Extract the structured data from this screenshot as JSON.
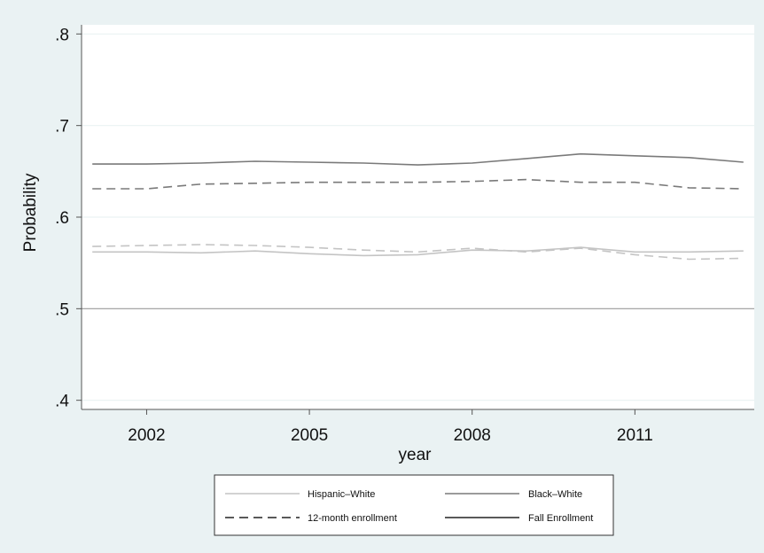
{
  "chart_data": {
    "type": "line",
    "xlabel": "year",
    "ylabel": "Probability",
    "xlim": [
      2000.8,
      2013.2
    ],
    "ylim": [
      0.39,
      0.81
    ],
    "x_ticks": [
      2002,
      2005,
      2008,
      2011
    ],
    "x_tick_labels": [
      "2002",
      "2005",
      "2008",
      "2011"
    ],
    "y_ticks": [
      0.4,
      0.5,
      0.6,
      0.7,
      0.8
    ],
    "y_tick_labels": [
      ".4",
      ".5",
      ".6",
      ".7",
      ".8"
    ],
    "reference_line_y": 0.5,
    "grid": true,
    "legend_position": "bottom",
    "legend": [
      {
        "label": "Hispanic–White",
        "style": "solid",
        "color": "#c4c4c4"
      },
      {
        "label": "Black–White",
        "style": "solid",
        "color": "#7a7a7a"
      },
      {
        "label": "12-month enrollment",
        "style": "dashed",
        "color": "#222222"
      },
      {
        "label": "Fall Enrollment",
        "style": "solid",
        "color": "#222222"
      }
    ],
    "x": [
      2001,
      2002,
      2003,
      2004,
      2005,
      2006,
      2007,
      2008,
      2009,
      2010,
      2011,
      2012,
      2013
    ],
    "series": [
      {
        "group": "Black–White",
        "measure": "Fall Enrollment",
        "style": "solid",
        "color": "#7a7a7a",
        "values": [
          0.658,
          0.658,
          0.659,
          0.661,
          0.66,
          0.659,
          0.657,
          0.659,
          0.664,
          0.669,
          0.667,
          0.665,
          0.66
        ]
      },
      {
        "group": "Black–White",
        "measure": "12-month enrollment",
        "style": "dashed",
        "color": "#7a7a7a",
        "values": [
          0.631,
          0.631,
          0.636,
          0.637,
          0.638,
          0.638,
          0.638,
          0.639,
          0.641,
          0.638,
          0.638,
          0.632,
          0.631
        ]
      },
      {
        "group": "Hispanic–White",
        "measure": "12-month enrollment",
        "style": "dashed",
        "color": "#c4c4c4",
        "values": [
          0.568,
          0.569,
          0.57,
          0.569,
          0.567,
          0.564,
          0.562,
          0.566,
          0.562,
          0.566,
          0.559,
          0.554,
          0.555
        ]
      },
      {
        "group": "Hispanic–White",
        "measure": "Fall Enrollment",
        "style": "solid",
        "color": "#c4c4c4",
        "values": [
          0.562,
          0.562,
          0.561,
          0.563,
          0.56,
          0.558,
          0.559,
          0.564,
          0.563,
          0.567,
          0.562,
          0.562,
          0.563
        ]
      }
    ]
  },
  "colors": {
    "outer_background": "#eaf2f3",
    "plot_background": "#ffffff",
    "gridline": "#eaf2f3",
    "reference_line": "#999999",
    "axis": "#555555"
  }
}
